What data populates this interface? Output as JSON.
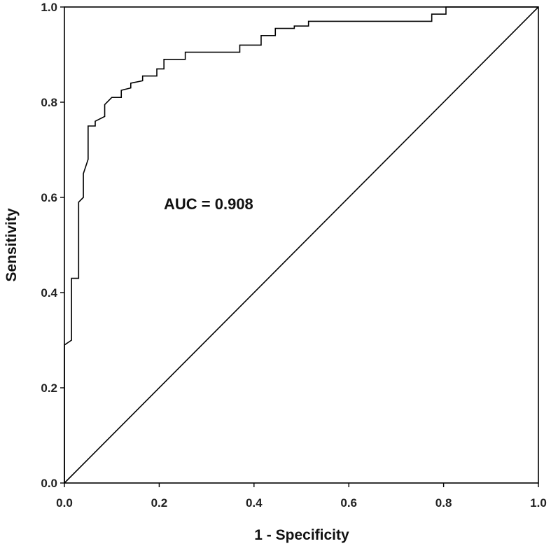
{
  "chart_data": {
    "type": "line",
    "title": "",
    "xlabel": "1 - Specificity",
    "ylabel": "Sensitivity",
    "xlim": [
      0,
      1
    ],
    "ylim": [
      0,
      1
    ],
    "x_ticks": [
      "0.0",
      "0.2",
      "0.4",
      "0.6",
      "0.8",
      "1.0"
    ],
    "y_ticks": [
      "0.0",
      "0.2",
      "0.4",
      "0.6",
      "0.8",
      "1.0"
    ],
    "grid": false,
    "legend": "none",
    "annotation": "AUC = 0.908",
    "series": [
      {
        "line_color": "#000000",
        "x": [
          0.0,
          0.0,
          0.015,
          0.015,
          0.03,
          0.03,
          0.04,
          0.04,
          0.05,
          0.05,
          0.065,
          0.065,
          0.085,
          0.085,
          0.1,
          0.1,
          0.12,
          0.12,
          0.14,
          0.14,
          0.165,
          0.165,
          0.195,
          0.195,
          0.21,
          0.21,
          0.255,
          0.255,
          0.275,
          0.275,
          0.37,
          0.37,
          0.415,
          0.415,
          0.445,
          0.445,
          0.485,
          0.485,
          0.515,
          0.515,
          0.54,
          0.54,
          0.775,
          0.775,
          0.805,
          0.805,
          1.0
        ],
        "y": [
          0.0,
          0.29,
          0.3,
          0.43,
          0.43,
          0.59,
          0.6,
          0.65,
          0.68,
          0.75,
          0.75,
          0.76,
          0.77,
          0.795,
          0.81,
          0.81,
          0.81,
          0.825,
          0.83,
          0.84,
          0.845,
          0.855,
          0.855,
          0.87,
          0.87,
          0.89,
          0.89,
          0.905,
          0.905,
          0.905,
          0.905,
          0.92,
          0.92,
          0.94,
          0.94,
          0.955,
          0.955,
          0.96,
          0.96,
          0.97,
          0.97,
          0.97,
          0.97,
          0.985,
          0.985,
          1.0,
          1.0
        ]
      },
      {
        "line_color": "#000000",
        "x": [
          0.0,
          1.0
        ],
        "y": [
          0.0,
          1.0
        ]
      }
    ]
  }
}
